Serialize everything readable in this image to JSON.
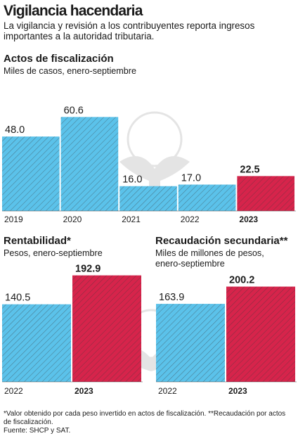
{
  "header": {
    "title": "Vigilancia hacendaria",
    "subtitle": "La vigilancia y revisión a los contribuyentes reporta ingresos importantes a la autoridad tributaria."
  },
  "colors": {
    "blue": "#5bc2ea",
    "red": "#d6244b",
    "hatch": "#3a3a3a"
  },
  "chart_data": [
    {
      "type": "bar",
      "title": "Actos de fiscalización",
      "subtitle": "Miles de casos, enero-septiembre",
      "categories": [
        "2019",
        "2020",
        "2021",
        "2022",
        "2023"
      ],
      "values": [
        48.0,
        60.6,
        16.0,
        17.0,
        22.5
      ],
      "value_labels": [
        "48.0",
        "60.6",
        "16.0",
        "17.0",
        "22.5"
      ],
      "highlight": "2023"
    },
    {
      "type": "bar",
      "title": "Rentabilidad*",
      "subtitle": "Pesos, enero-septiembre",
      "categories": [
        "2022",
        "2023"
      ],
      "values": [
        140.5,
        192.9
      ],
      "value_labels": [
        "140.5",
        "192.9"
      ],
      "highlight": "2023"
    },
    {
      "type": "bar",
      "title": "Recaudación secundaria**",
      "subtitle": "Miles de millones de pesos, enero-septiembre",
      "categories": [
        "2022",
        "2023"
      ],
      "values": [
        163.9,
        200.2
      ],
      "value_labels": [
        "163.9",
        "200.2"
      ],
      "highlight": "2023"
    }
  ],
  "footnote": {
    "note": "*Valor obtenido por cada peso invertido en actos de fiscalización. **Recaudación por actos de fiscalización.",
    "source": "Fuente: SHCP y SAT."
  }
}
